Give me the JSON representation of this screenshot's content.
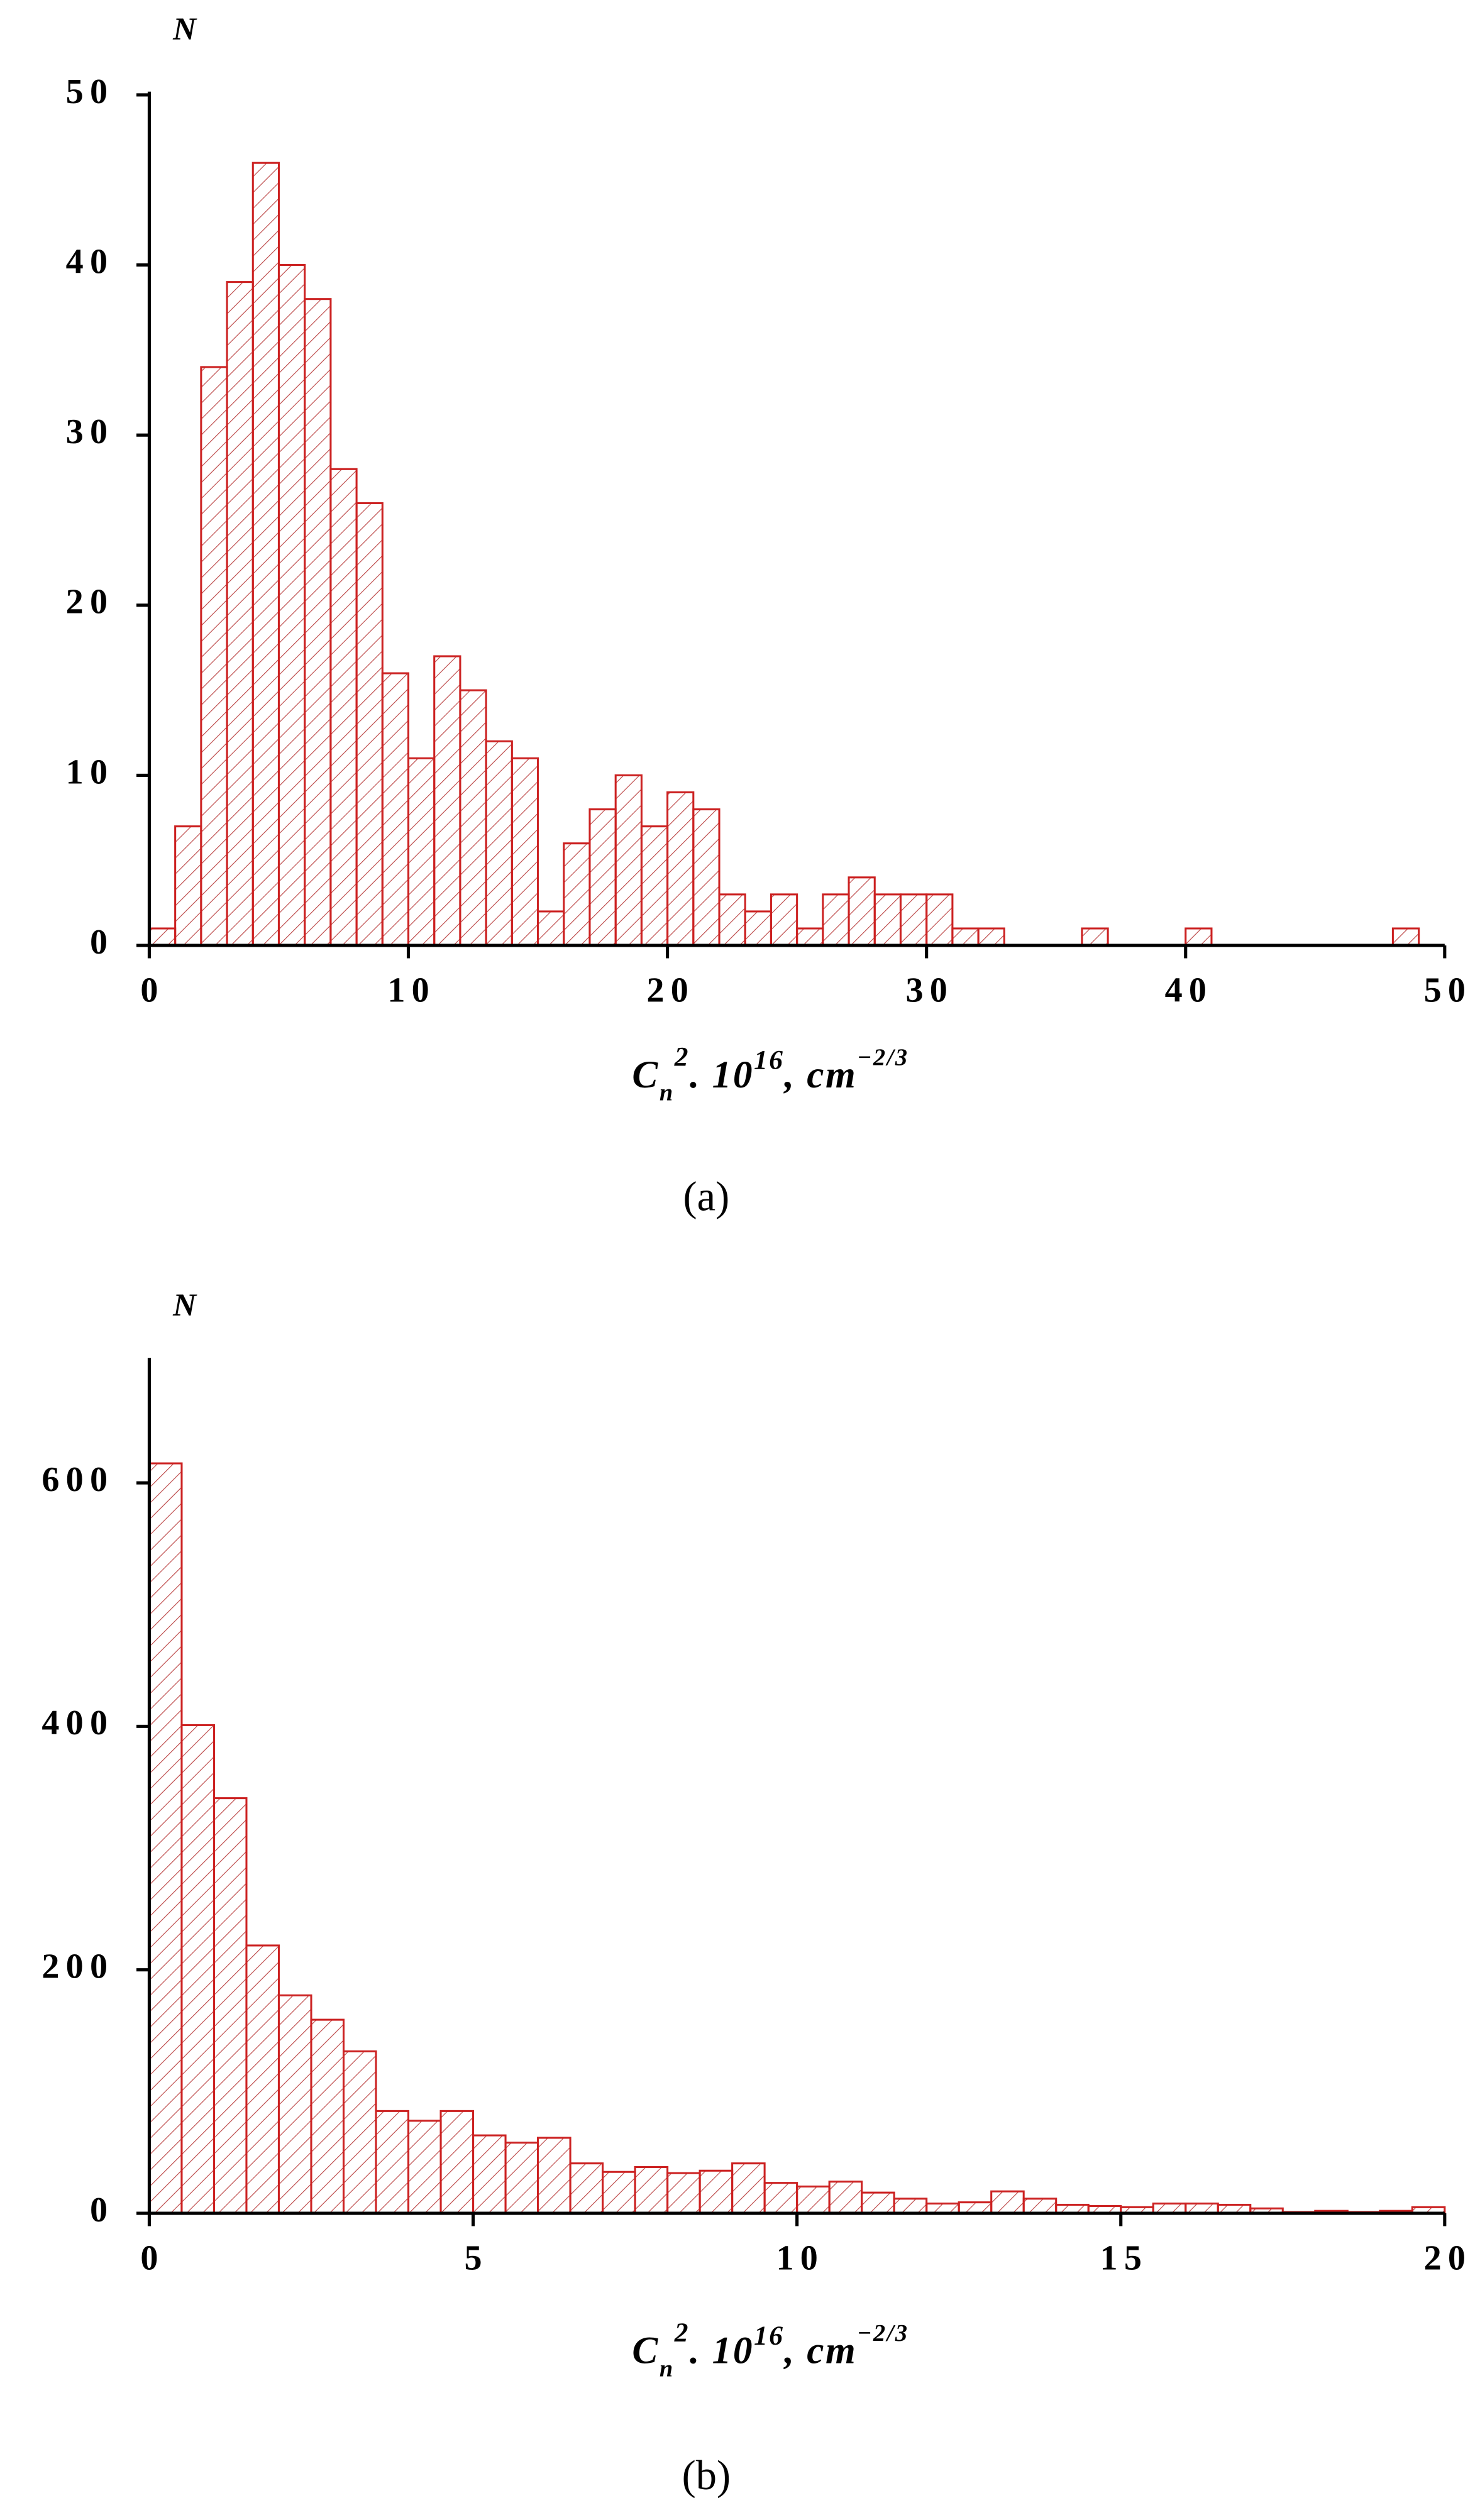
{
  "chart_data": [
    {
      "type": "histogram",
      "caption": "(a)",
      "y_label": "N",
      "x_label": {
        "base": "C",
        "sub": "n",
        "sup": "2",
        "mid": ". 10",
        "exp": "16",
        "unit": ", cm",
        "unit_exp": "−2/3"
      },
      "color": "#cc2222",
      "bins": [
        0,
        1,
        2,
        3,
        4,
        5,
        6,
        7,
        8,
        9,
        10,
        11,
        12,
        13,
        14,
        15,
        16,
        17,
        18,
        19,
        20,
        21,
        22,
        23,
        24,
        25,
        26,
        27,
        28,
        29,
        30,
        31,
        32,
        33,
        34,
        35,
        36,
        37,
        38,
        39,
        40,
        41,
        42,
        43,
        44,
        45,
        46,
        47,
        48,
        49,
        50
      ],
      "counts": [
        1,
        7,
        34,
        39,
        46,
        40,
        38,
        28,
        26,
        16,
        11,
        17,
        15,
        12,
        11,
        2,
        6,
        8,
        10,
        7,
        9,
        8,
        3,
        2,
        3,
        1,
        3,
        4,
        3,
        3,
        3,
        1,
        1,
        0,
        0,
        0,
        1,
        0,
        0,
        0,
        1,
        0,
        0,
        0,
        0,
        0,
        0,
        0,
        1,
        0
      ],
      "xlim": [
        0,
        50
      ],
      "xticks": [
        0,
        10,
        20,
        30,
        40,
        50
      ],
      "ylim": [
        0,
        50
      ],
      "yticks": [
        0,
        10,
        20,
        30,
        40,
        50
      ]
    },
    {
      "type": "histogram",
      "caption": "(b)",
      "y_label": "N",
      "x_label": {
        "base": "C",
        "sub": "n",
        "sup": "2",
        "mid": ". 10",
        "exp": "16",
        "unit": ", cm",
        "unit_exp": "−2/3"
      },
      "color": "#cc2222",
      "bins": [
        0,
        0.5,
        1,
        1.5,
        2,
        2.5,
        3,
        3.5,
        4,
        4.5,
        5,
        5.5,
        6,
        6.5,
        7,
        7.5,
        8,
        8.5,
        9,
        9.5,
        10,
        10.5,
        11,
        11.5,
        12,
        12.5,
        13,
        13.5,
        14,
        14.5,
        15,
        15.5,
        16,
        16.5,
        17,
        17.5,
        18,
        18.5,
        19,
        19.5,
        20
      ],
      "counts": [
        616,
        401,
        341,
        220,
        179,
        159,
        133,
        84,
        76,
        84,
        64,
        58,
        62,
        41,
        34,
        38,
        33,
        35,
        41,
        25,
        22,
        26,
        17,
        12,
        8,
        9,
        18,
        12,
        7,
        6,
        5,
        8,
        8,
        7,
        4,
        1,
        2,
        1,
        2,
        5
      ],
      "xlim": [
        0,
        20
      ],
      "xticks": [
        0,
        5,
        10,
        15,
        20
      ],
      "ylim": [
        0,
        700
      ],
      "yticks": [
        0,
        200,
        400,
        600
      ]
    }
  ]
}
